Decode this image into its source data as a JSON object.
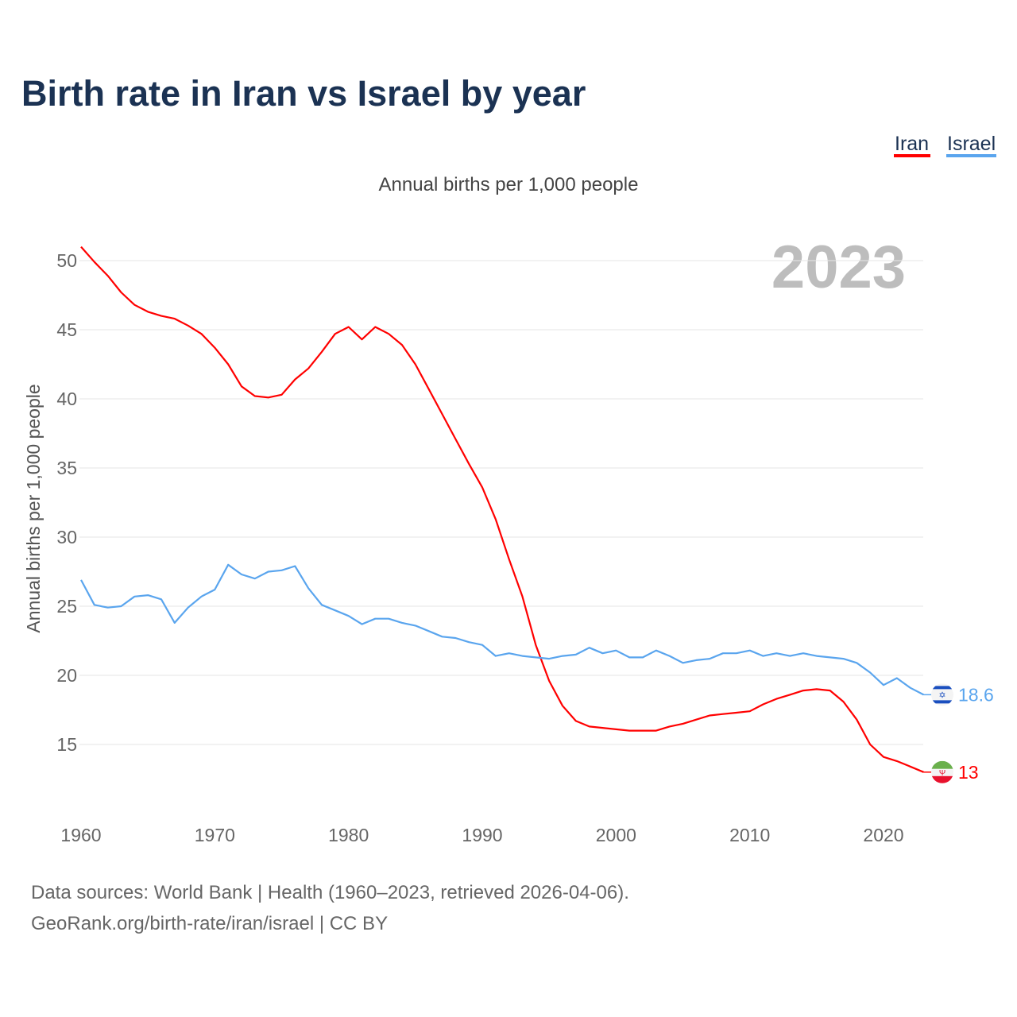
{
  "chart_data": {
    "type": "line",
    "title": "Birth rate in Iran vs Israel by year",
    "subtitle": "Annual births per 1,000 people",
    "ylabel": "Annual births per 1,000 people",
    "xlabel": "",
    "highlight_year": "2023",
    "xlim": [
      1960,
      2023
    ],
    "ylim": [
      11,
      52
    ],
    "x_ticks": [
      1960,
      1970,
      1980,
      1990,
      2000,
      2010,
      2020
    ],
    "y_ticks": [
      15,
      20,
      25,
      30,
      35,
      40,
      45,
      50
    ],
    "grid": true,
    "legend_position": "top-right",
    "x_start": 1960,
    "series": [
      {
        "name": "Iran",
        "color": "#ff0000",
        "end_label": "13",
        "values": [
          51.0,
          49.9,
          48.9,
          47.7,
          46.8,
          46.3,
          46.0,
          45.8,
          45.3,
          44.7,
          43.7,
          42.5,
          40.9,
          40.2,
          40.1,
          40.3,
          41.4,
          42.2,
          43.4,
          44.7,
          45.2,
          44.3,
          45.2,
          44.7,
          43.9,
          42.5,
          40.7,
          38.9,
          37.1,
          35.3,
          33.6,
          31.3,
          28.4,
          25.7,
          22.2,
          19.6,
          17.8,
          16.7,
          16.3,
          16.2,
          16.1,
          16.0,
          16.0,
          16.0,
          16.3,
          16.5,
          16.8,
          17.1,
          17.2,
          17.3,
          17.4,
          17.9,
          18.3,
          18.6,
          18.9,
          19.0,
          18.9,
          18.1,
          16.8,
          15.0,
          14.1,
          13.8,
          13.4,
          13.0
        ]
      },
      {
        "name": "Israel",
        "color": "#5aa5ee",
        "end_label": "18.6",
        "values": [
          26.9,
          25.1,
          24.9,
          25.0,
          25.7,
          25.8,
          25.5,
          23.8,
          24.9,
          25.7,
          26.2,
          28.0,
          27.3,
          27.0,
          27.5,
          27.6,
          27.9,
          26.3,
          25.1,
          24.7,
          24.3,
          23.7,
          24.1,
          24.1,
          23.8,
          23.6,
          23.2,
          22.8,
          22.7,
          22.4,
          22.2,
          21.4,
          21.6,
          21.4,
          21.3,
          21.2,
          21.4,
          21.5,
          22.0,
          21.6,
          21.8,
          21.3,
          21.3,
          21.8,
          21.4,
          20.9,
          21.1,
          21.2,
          21.6,
          21.6,
          21.8,
          21.4,
          21.6,
          21.4,
          21.6,
          21.4,
          21.3,
          21.2,
          20.9,
          20.2,
          19.3,
          19.8,
          19.1,
          18.6
        ]
      }
    ]
  },
  "footer": {
    "line1": "Data sources: World Bank | Health (1960–2023, retrieved 2026-04-06).",
    "line2": "GeoRank.org/birth-rate/iran/israel | CC BY"
  }
}
